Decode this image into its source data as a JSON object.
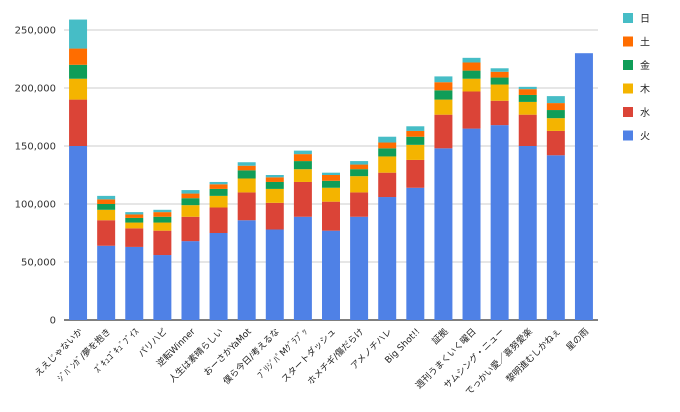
{
  "chart_data": {
    "type": "bar",
    "stacked": true,
    "title": "",
    "xlabel": "",
    "ylabel": "",
    "ylim": [
      0,
      250000
    ],
    "yticks": [
      0,
      50000,
      100000,
      150000,
      200000,
      250000
    ],
    "ytick_labels": [
      "0",
      "50,000",
      "100,000",
      "150,000",
      "200,000",
      "250,000"
    ],
    "grid": true,
    "legend_position": "right",
    "categories": [
      "ええじゃないか",
      "ｼﾞﾊﾞﾝｶﾞ/夢を抱き",
      "ｽﾞｷｭｺﾞｷｭﾞﾌﾞｲｽ",
      "パリハピ",
      "逆転Winner",
      "人生は素晴らしい",
      "おーさかYaMot",
      "僕ら今日/考えるな",
      "ﾌﾞﾘｼﾞﾊﾟMｸﾞﾗﾌﾞｯ",
      "スタートダッシュ",
      "ホメチギ/傷だらけ",
      "アメノチハレ",
      "Big Shot!!",
      "証拠",
      "週刊うまくいく曜日",
      "サムシング・ニュー",
      "でっかい愛／喜努愛楽",
      "黎明進むしかねぇ",
      "星の雨"
    ],
    "series": [
      {
        "name": "火",
        "color": "#4f81e6",
        "values": [
          150000,
          64000,
          63000,
          56000,
          68000,
          75000,
          86000,
          78000,
          89000,
          77000,
          89000,
          106000,
          114000,
          148000,
          165000,
          168000,
          150000,
          142000,
          230000
        ]
      },
      {
        "name": "水",
        "color": "#db4437",
        "values": [
          40000,
          22000,
          16000,
          21000,
          21000,
          22000,
          24000,
          23000,
          30000,
          25000,
          21000,
          21000,
          24000,
          29000,
          32000,
          21000,
          27000,
          21000,
          0
        ]
      },
      {
        "name": "木",
        "color": "#f4b400",
        "values": [
          18000,
          9000,
          5000,
          7000,
          10000,
          10000,
          12000,
          12000,
          11000,
          12000,
          14000,
          14000,
          13000,
          13000,
          11000,
          14000,
          11000,
          11000,
          0
        ]
      },
      {
        "name": "金",
        "color": "#0f9d58",
        "values": [
          12000,
          5000,
          4000,
          5000,
          6000,
          6000,
          7000,
          6000,
          7000,
          6000,
          6000,
          7000,
          7000,
          8000,
          7000,
          6000,
          6000,
          7000,
          0
        ]
      },
      {
        "name": "土",
        "color": "#ff6d00",
        "values": [
          14000,
          4000,
          3000,
          4000,
          4000,
          4000,
          4000,
          4000,
          6000,
          5000,
          4000,
          5000,
          5000,
          7000,
          7000,
          5000,
          5000,
          6000,
          0
        ]
      },
      {
        "name": "日",
        "color": "#46bdc6",
        "values": [
          25000,
          3000,
          2000,
          2000,
          3000,
          2000,
          3000,
          2000,
          3000,
          2000,
          3000,
          5000,
          4000,
          5000,
          4000,
          3000,
          2000,
          6000,
          0
        ]
      }
    ],
    "legend_order": [
      "日",
      "土",
      "金",
      "木",
      "水",
      "火"
    ]
  },
  "colors": {
    "grid": "#cccccc",
    "axis": "#333333"
  }
}
